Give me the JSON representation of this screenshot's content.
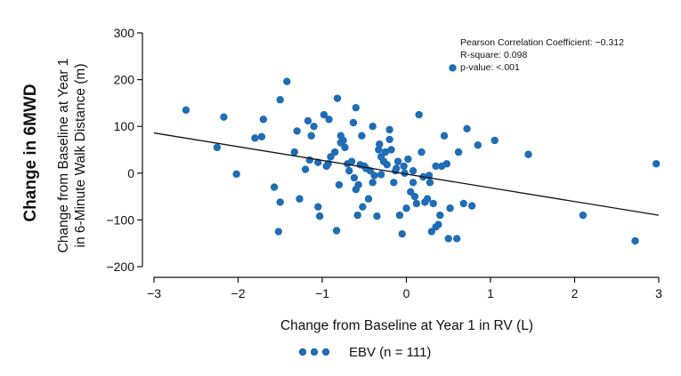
{
  "chart_data": {
    "type": "scatter",
    "side_title": "Change in 6MWD",
    "xlabel": "Change from Baseline at Year 1 in RV (L)",
    "ylabel_lines": [
      "Change from Baseline at Year 1",
      "in 6-Minute Walk Distance (m)"
    ],
    "xlim": [
      -3,
      3
    ],
    "ylim": [
      -200,
      300
    ],
    "x_ticks": [
      -3,
      -2,
      -1,
      0,
      1,
      2,
      3
    ],
    "x_tick_labels": [
      "−3",
      "−2",
      "−1",
      "0",
      "1",
      "2",
      "3"
    ],
    "y_ticks": [
      -200,
      -100,
      0,
      100,
      200,
      300
    ],
    "y_tick_labels": [
      "−200",
      "−100",
      "0",
      "100",
      "200",
      "300"
    ],
    "annotations": [
      "Pearson Correlation Coefficient: −0.312",
      "R-square: 0.098",
      "p-value: <.001"
    ],
    "regression_line": {
      "x": [
        -3,
        3
      ],
      "y": [
        86,
        -90
      ]
    },
    "series": [
      {
        "name": "EBV (n = 111)",
        "color": "#1f6db5",
        "points": [
          [
            -2.62,
            135
          ],
          [
            -2.25,
            55
          ],
          [
            -2.17,
            120
          ],
          [
            -2.02,
            -2
          ],
          [
            -1.8,
            75
          ],
          [
            -1.7,
            115
          ],
          [
            -1.72,
            78
          ],
          [
            -1.57,
            -30
          ],
          [
            -1.52,
            -125
          ],
          [
            -1.5,
            -62
          ],
          [
            -1.5,
            157
          ],
          [
            -1.42,
            196
          ],
          [
            -1.33,
            45
          ],
          [
            -1.3,
            90
          ],
          [
            -1.27,
            -55
          ],
          [
            -1.2,
            8
          ],
          [
            -1.17,
            112
          ],
          [
            -1.15,
            28
          ],
          [
            -1.13,
            80
          ],
          [
            -1.1,
            100
          ],
          [
            -1.05,
            -72
          ],
          [
            -1.05,
            23
          ],
          [
            -1.03,
            -92
          ],
          [
            -0.98,
            125
          ],
          [
            -0.95,
            15
          ],
          [
            -0.93,
            20
          ],
          [
            -0.92,
            115
          ],
          [
            -0.9,
            35
          ],
          [
            -0.85,
            45
          ],
          [
            -0.82,
            160
          ],
          [
            -0.83,
            -123
          ],
          [
            -0.8,
            -25
          ],
          [
            -0.78,
            80
          ],
          [
            -0.78,
            65
          ],
          [
            -0.75,
            70
          ],
          [
            -0.73,
            55
          ],
          [
            -0.7,
            20
          ],
          [
            -0.68,
            5
          ],
          [
            -0.65,
            25
          ],
          [
            -0.63,
            108
          ],
          [
            -0.6,
            140
          ],
          [
            -0.62,
            -10
          ],
          [
            -0.6,
            -35
          ],
          [
            -0.58,
            -90
          ],
          [
            -0.57,
            -25
          ],
          [
            -0.55,
            18
          ],
          [
            -0.53,
            80
          ],
          [
            -0.52,
            -72
          ],
          [
            -0.5,
            15
          ],
          [
            -0.48,
            10
          ],
          [
            -0.45,
            -55
          ],
          [
            -0.43,
            5
          ],
          [
            -0.4,
            100
          ],
          [
            -0.4,
            -20
          ],
          [
            -0.38,
            -5
          ],
          [
            -0.35,
            -92
          ],
          [
            -0.33,
            50
          ],
          [
            -0.32,
            62
          ],
          [
            -0.3,
            35
          ],
          [
            -0.3,
            -3
          ],
          [
            -0.27,
            25
          ],
          [
            -0.25,
            45
          ],
          [
            -0.23,
            18
          ],
          [
            -0.2,
            93
          ],
          [
            -0.2,
            72
          ],
          [
            -0.18,
            50
          ],
          [
            -0.15,
            -20
          ],
          [
            -0.13,
            5
          ],
          [
            -0.12,
            10
          ],
          [
            -0.1,
            25
          ],
          [
            -0.08,
            -90
          ],
          [
            -0.05,
            -130
          ],
          [
            -0.03,
            15
          ],
          [
            -0.02,
            0
          ],
          [
            0.0,
            -75
          ],
          [
            0.02,
            30
          ],
          [
            0.05,
            -40
          ],
          [
            0.08,
            -20
          ],
          [
            0.08,
            5
          ],
          [
            0.1,
            -50
          ],
          [
            0.12,
            -65
          ],
          [
            0.15,
            125
          ],
          [
            0.18,
            45
          ],
          [
            0.2,
            -8
          ],
          [
            0.22,
            -62
          ],
          [
            0.25,
            -55
          ],
          [
            0.27,
            -5
          ],
          [
            0.28,
            -20
          ],
          [
            0.3,
            -125
          ],
          [
            0.32,
            -65
          ],
          [
            0.35,
            -115
          ],
          [
            0.35,
            15
          ],
          [
            0.38,
            -110
          ],
          [
            0.4,
            -90
          ],
          [
            0.42,
            15
          ],
          [
            0.45,
            80
          ],
          [
            0.48,
            20
          ],
          [
            0.5,
            -140
          ],
          [
            0.52,
            -75
          ],
          [
            0.55,
            225
          ],
          [
            0.6,
            -140
          ],
          [
            0.62,
            45
          ],
          [
            0.68,
            -65
          ],
          [
            0.72,
            95
          ],
          [
            0.78,
            -70
          ],
          [
            0.85,
            60
          ],
          [
            1.05,
            70
          ],
          [
            1.45,
            40
          ],
          [
            2.1,
            -90
          ],
          [
            2.72,
            -145
          ],
          [
            2.97,
            20
          ]
        ]
      }
    ]
  }
}
